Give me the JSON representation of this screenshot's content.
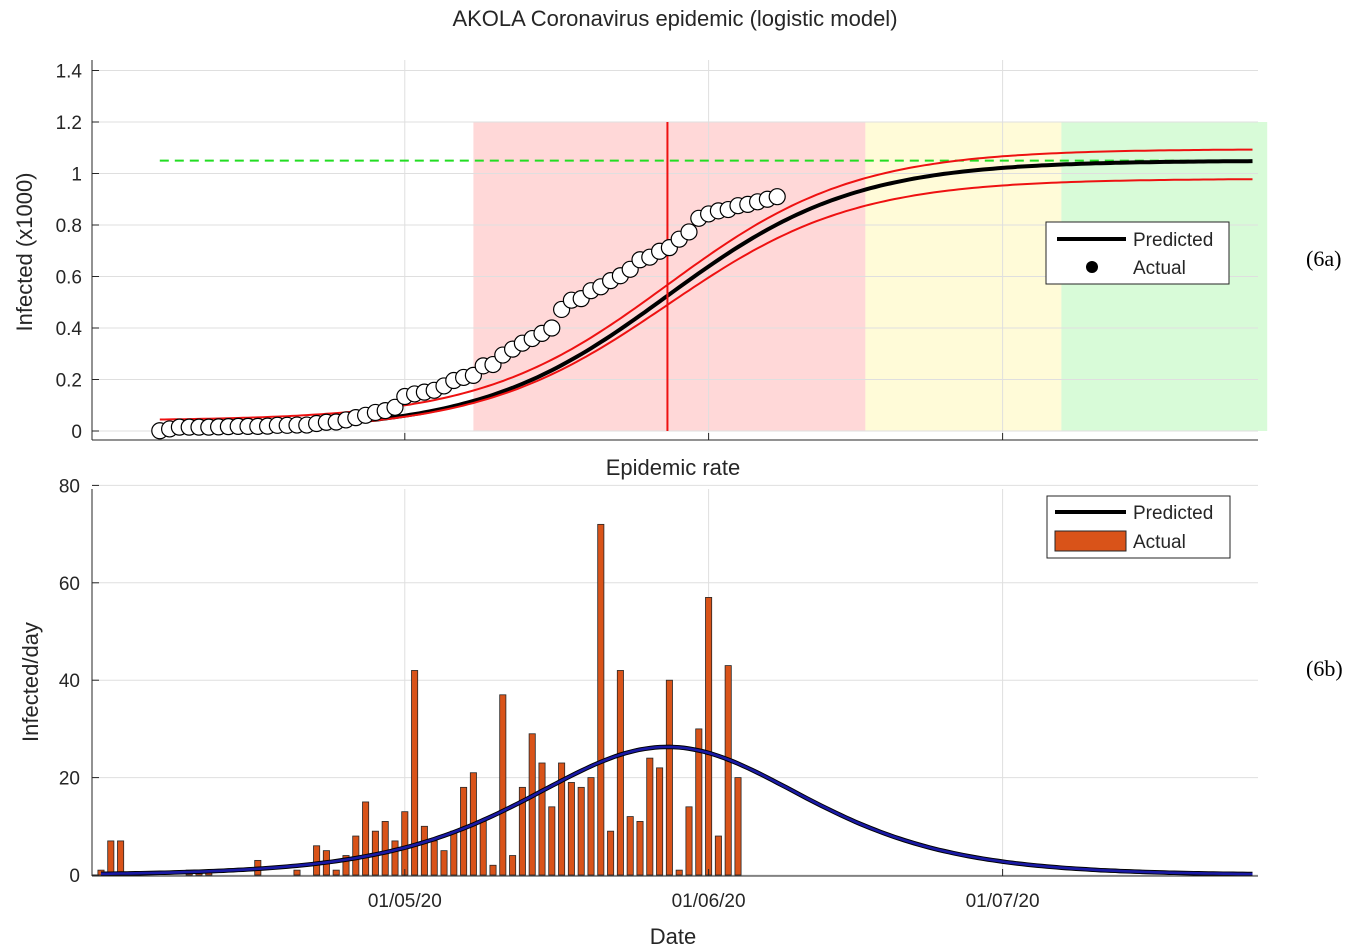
{
  "labels": {
    "fig_a": "(6a)",
    "fig_b": "(6b)"
  },
  "chart_data": [
    {
      "type": "line",
      "title": "AKOLA Coronavirus epidemic (logistic model)",
      "xlabel": "",
      "ylabel": "Infected (x1000)",
      "ylim": [
        0,
        1.4
      ],
      "yticks": [
        "0",
        "0.2",
        "0.4",
        "0.6",
        "0.8",
        "1",
        "1.2",
        "1.4"
      ],
      "grid": true,
      "legend_position": "right",
      "legend": [
        "Predicted",
        "Actual"
      ],
      "logistic": {
        "K": 1.05,
        "r": 0.105,
        "t0": 57.8,
        "ci_low_K": 1.01,
        "ci_high_K": 1.095,
        "baseline_high": 0.04
      },
      "saturation_line": 1.05,
      "inflection_day": 57.8,
      "phases": [
        {
          "name": "growth",
          "start_day": 38,
          "end_day": 78,
          "color": "#ffd8d8"
        },
        {
          "name": "slowdown",
          "start_day": 78,
          "end_day": 98,
          "color": "#fffbd8"
        },
        {
          "name": "ending",
          "start_day": 98,
          "end_day": 119,
          "color": "#d8fbd8"
        }
      ],
      "actual_days": [
        6,
        7,
        8,
        9,
        10,
        11,
        12,
        13,
        14,
        15,
        16,
        17,
        18,
        19,
        20,
        21,
        22,
        23,
        24,
        25,
        26,
        27,
        28,
        29,
        30,
        31,
        32,
        33,
        34,
        35,
        36,
        37,
        38,
        39,
        40,
        41,
        42,
        43,
        44,
        45,
        46,
        47,
        48,
        49,
        50,
        51,
        52,
        53,
        54,
        55,
        56,
        57,
        58,
        59,
        60,
        61,
        62,
        63,
        64,
        65,
        66,
        67,
        68,
        69,
        70
      ],
      "actual_values": [
        0.001,
        0.008,
        0.015,
        0.015,
        0.015,
        0.015,
        0.016,
        0.017,
        0.018,
        0.018,
        0.018,
        0.019,
        0.022,
        0.022,
        0.023,
        0.023,
        0.029,
        0.034,
        0.035,
        0.043,
        0.052,
        0.061,
        0.072,
        0.079,
        0.092,
        0.134,
        0.144,
        0.151,
        0.158,
        0.175,
        0.196,
        0.208,
        0.216,
        0.253,
        0.258,
        0.295,
        0.318,
        0.341,
        0.359,
        0.379,
        0.4,
        0.472,
        0.508,
        0.514,
        0.545,
        0.56,
        0.584,
        0.603,
        0.628,
        0.665,
        0.675,
        0.698,
        0.712,
        0.745,
        0.773,
        0.826,
        0.843,
        0.855,
        0.86,
        0.875,
        0.88,
        0.89,
        0.9,
        0.91,
        0.92
      ]
    },
    {
      "type": "bar",
      "title": "Epidemic rate",
      "xlabel": "Date",
      "ylabel": "Infected/day",
      "ylim": [
        0,
        80
      ],
      "yticks": [
        "0",
        "20",
        "40",
        "60",
        "80"
      ],
      "xticks": [
        {
          "day": 31,
          "label": "01/05/20"
        },
        {
          "day": 62,
          "label": "01/06/20"
        },
        {
          "day": 92,
          "label": "01/07/20"
        }
      ],
      "grid": true,
      "legend_position": "top-right",
      "legend": [
        "Predicted",
        "Actual"
      ],
      "predicted_peak": 26.3,
      "bars": [
        1,
        7,
        7,
        0,
        0,
        0,
        0,
        0,
        0,
        1,
        1,
        1,
        0,
        0,
        0,
        0,
        3,
        0,
        0,
        0,
        1,
        0,
        6,
        5,
        1,
        4,
        8,
        15,
        9,
        11,
        7,
        13,
        42,
        10,
        7,
        5,
        9,
        18,
        21,
        11,
        2,
        37,
        4,
        18,
        29,
        23,
        14,
        23,
        19,
        18,
        20,
        72,
        9,
        42,
        12,
        11,
        24,
        22,
        40,
        1,
        14,
        30,
        57,
        8,
        43,
        20
      ]
    }
  ]
}
